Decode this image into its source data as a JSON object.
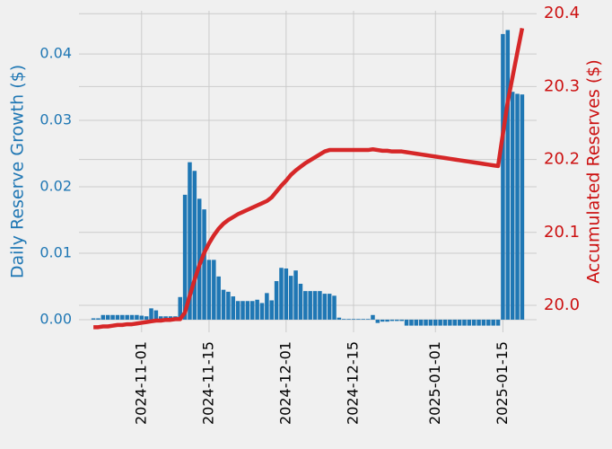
{
  "chart_data": {
    "type": "bar+line",
    "y_label": "Daily Reserve Growth ($)",
    "y2_label": "Accumulated Reserves ($)",
    "grid": true,
    "x": [
      "2024-10-22",
      "2024-10-23",
      "2024-10-24",
      "2024-10-25",
      "2024-10-26",
      "2024-10-27",
      "2024-10-28",
      "2024-10-29",
      "2024-10-30",
      "2024-10-31",
      "2024-11-01",
      "2024-11-02",
      "2024-11-03",
      "2024-11-04",
      "2024-11-05",
      "2024-11-06",
      "2024-11-07",
      "2024-11-08",
      "2024-11-09",
      "2024-11-10",
      "2024-11-11",
      "2024-11-12",
      "2024-11-13",
      "2024-11-14",
      "2024-11-15",
      "2024-11-16",
      "2024-11-17",
      "2024-11-18",
      "2024-11-19",
      "2024-11-20",
      "2024-11-21",
      "2024-11-22",
      "2024-11-23",
      "2024-11-24",
      "2024-11-25",
      "2024-11-26",
      "2024-11-27",
      "2024-11-28",
      "2024-11-29",
      "2024-11-30",
      "2024-12-01",
      "2024-12-02",
      "2024-12-03",
      "2024-12-04",
      "2024-12-05",
      "2024-12-06",
      "2024-12-07",
      "2024-12-08",
      "2024-12-09",
      "2024-12-10",
      "2024-12-11",
      "2024-12-12",
      "2024-12-13",
      "2024-12-14",
      "2024-12-15",
      "2024-12-16",
      "2024-12-17",
      "2024-12-18",
      "2024-12-19",
      "2024-12-20",
      "2024-12-21",
      "2024-12-22",
      "2024-12-23",
      "2024-12-24",
      "2024-12-25",
      "2024-12-26",
      "2024-12-27",
      "2024-12-28",
      "2024-12-29",
      "2024-12-30",
      "2024-12-31",
      "2025-01-01",
      "2025-01-02",
      "2025-01-03",
      "2025-01-04",
      "2025-01-05",
      "2025-01-06",
      "2025-01-07",
      "2025-01-08",
      "2025-01-09",
      "2025-01-10",
      "2025-01-11",
      "2025-01-12",
      "2025-01-13",
      "2025-01-14",
      "2025-01-15",
      "2025-01-16",
      "2025-01-17",
      "2025-01-18",
      "2025-01-19"
    ],
    "xlim": [
      "2024-10-19",
      "2025-01-22"
    ],
    "xticks": [
      "2024-11-01",
      "2024-11-15",
      "2024-12-01",
      "2024-12-15",
      "2025-01-01",
      "2025-01-15"
    ],
    "ylim": [
      -0.0019,
      0.0465
    ],
    "yticks": [
      {
        "value": 0,
        "label": "0.00"
      },
      {
        "value": 0.01,
        "label": "0.01"
      },
      {
        "value": 0.02,
        "label": "0.02"
      },
      {
        "value": 0.03,
        "label": "0.03"
      },
      {
        "value": 0.04,
        "label": "0.04"
      }
    ],
    "y2lim": [
      19.963,
      20.404
    ],
    "y2ticks": [
      {
        "value": 20,
        "label": "20.0"
      },
      20.1,
      20.2,
      20.3,
      20.4
    ],
    "series": [
      {
        "name": "Daily Reserve Growth",
        "type": "bar",
        "color": "#1f77b4",
        "values": [
          0.0002,
          0.0002,
          0.0007,
          0.0007,
          0.0007,
          0.0007,
          0.0007,
          0.0007,
          0.0007,
          0.0007,
          0.0006,
          0.0005,
          0.0017,
          0.0014,
          0.0005,
          0.0005,
          0.0005,
          0.0005,
          0.0034,
          0.0188,
          0.0237,
          0.0224,
          0.0182,
          0.0166,
          0.009,
          0.009,
          0.0065,
          0.0045,
          0.0042,
          0.0035,
          0.0028,
          0.0028,
          0.0028,
          0.0028,
          0.003,
          0.0025,
          0.004,
          0.0029,
          0.0058,
          0.0078,
          0.0077,
          0.0066,
          0.0074,
          0.0054,
          0.0043,
          0.0043,
          0.0043,
          0.0043,
          0.0039,
          0.0039,
          0.0036,
          0.0003,
          0.0001,
          0.0001,
          0.0001,
          0.0001,
          0.0001,
          0.0001,
          0.0007,
          -0.0005,
          -0.0003,
          -0.0003,
          -0.0002,
          -0.0002,
          -0.0002,
          -0.0009,
          -0.0009,
          -0.0009,
          -0.0009,
          -0.0009,
          -0.0009,
          -0.0009,
          -0.0009,
          -0.0009,
          -0.0009,
          -0.0009,
          -0.0009,
          -0.0009,
          -0.0009,
          -0.0009,
          -0.0009,
          -0.0009,
          -0.0009,
          -0.0009,
          -0.0009,
          0.043,
          0.0436,
          0.0343,
          0.034,
          0.0339
        ]
      },
      {
        "name": "Accumulated Reserves",
        "type": "line",
        "axis": "y2",
        "color": "#d62728",
        "values": [
          19.97,
          19.97,
          19.971,
          19.971,
          19.972,
          19.973,
          19.973,
          19.974,
          19.974,
          19.975,
          19.976,
          19.977,
          19.978,
          19.979,
          19.979,
          19.98,
          19.98,
          19.981,
          19.981,
          19.99,
          20.013,
          20.035,
          20.055,
          20.072,
          20.085,
          20.096,
          20.105,
          20.112,
          20.117,
          20.121,
          20.125,
          20.128,
          20.131,
          20.134,
          20.137,
          20.14,
          20.143,
          20.148,
          20.156,
          20.164,
          20.171,
          20.179,
          20.185,
          20.19,
          20.195,
          20.199,
          20.203,
          20.207,
          20.211,
          20.213,
          20.213,
          20.213,
          20.213,
          20.213,
          20.213,
          20.213,
          20.213,
          20.213,
          20.214,
          20.213,
          20.212,
          20.212,
          20.211,
          20.211,
          20.211,
          20.21,
          20.209,
          20.208,
          20.207,
          20.206,
          20.205,
          20.204,
          20.203,
          20.202,
          20.201,
          20.2,
          20.199,
          20.198,
          20.197,
          20.196,
          20.195,
          20.194,
          20.193,
          20.192,
          20.191,
          20.235,
          20.279,
          20.313,
          20.347,
          20.38
        ]
      }
    ]
  }
}
